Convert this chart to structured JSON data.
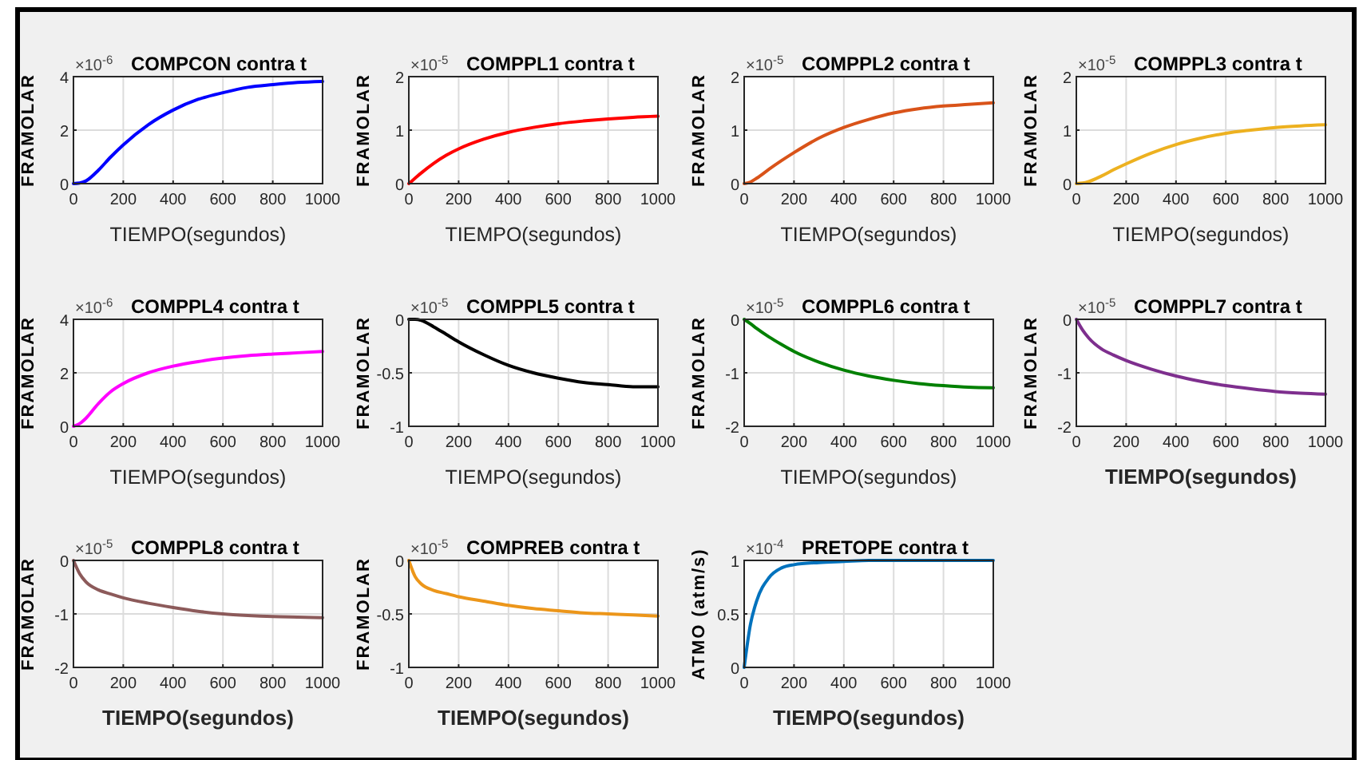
{
  "chart_data": [
    {
      "type": "line",
      "title": "COMPCON contra t",
      "annotations": [
        "×10$^{-6}$"
      ],
      "xlabel": "TIEMPO(segundos)",
      "ylabel": "FRAMOLAR",
      "xlim": [
        0,
        1000
      ],
      "xticks": [
        0,
        200,
        400,
        600,
        800,
        1000
      ],
      "ylim": [
        0,
        4
      ],
      "yticks": [
        0,
        2,
        4
      ],
      "grid": true,
      "x": [
        0,
        25,
        50,
        100,
        150,
        200,
        300,
        400,
        500,
        600,
        700,
        800,
        900,
        1000
      ],
      "series": [
        {
          "color": "#0000ff",
          "values": [
            0,
            0.02,
            0.1,
            0.5,
            1.0,
            1.45,
            2.2,
            2.75,
            3.15,
            3.4,
            3.6,
            3.7,
            3.78,
            3.82
          ]
        }
      ]
    },
    {
      "type": "line",
      "title": "COMPPL1 contra t",
      "annotations": [
        "×10$^{-5}$"
      ],
      "xlabel": "TIEMPO(segundos)",
      "ylabel": "FRAMOLAR",
      "xlim": [
        0,
        1000
      ],
      "xticks": [
        0,
        200,
        400,
        600,
        800,
        1000
      ],
      "ylim": [
        0,
        2
      ],
      "yticks": [
        0,
        1,
        2
      ],
      "grid": true,
      "x": [
        0,
        25,
        50,
        100,
        150,
        200,
        300,
        400,
        500,
        600,
        700,
        800,
        900,
        1000
      ],
      "series": [
        {
          "color": "#ff0000",
          "values": [
            0,
            0.1,
            0.2,
            0.38,
            0.53,
            0.65,
            0.83,
            0.96,
            1.05,
            1.12,
            1.17,
            1.21,
            1.24,
            1.26
          ]
        }
      ]
    },
    {
      "type": "line",
      "title": "COMPPL2 contra t",
      "annotations": [
        "×10$^{-5}$"
      ],
      "xlabel": "TIEMPO(segundos)",
      "ylabel": "FRAMOLAR",
      "xlim": [
        0,
        1000
      ],
      "xticks": [
        0,
        200,
        400,
        600,
        800,
        1000
      ],
      "ylim": [
        0,
        2
      ],
      "yticks": [
        0,
        1,
        2
      ],
      "grid": true,
      "x": [
        0,
        25,
        50,
        100,
        150,
        200,
        300,
        400,
        500,
        600,
        700,
        800,
        900,
        1000
      ],
      "series": [
        {
          "color": "#d95319",
          "values": [
            0,
            0.03,
            0.1,
            0.27,
            0.43,
            0.58,
            0.85,
            1.05,
            1.2,
            1.32,
            1.4,
            1.45,
            1.48,
            1.51
          ]
        }
      ]
    },
    {
      "type": "line",
      "title": "COMPPL3 contra t",
      "annotations": [
        "×10$^{-5}$"
      ],
      "xlabel": "TIEMPO(segundos)",
      "ylabel": "FRAMOLAR",
      "xlim": [
        0,
        1000
      ],
      "xticks": [
        0,
        200,
        400,
        600,
        800,
        1000
      ],
      "ylim": [
        0,
        2
      ],
      "yticks": [
        0,
        1,
        2
      ],
      "grid": true,
      "x": [
        0,
        25,
        50,
        100,
        150,
        200,
        300,
        400,
        500,
        600,
        700,
        800,
        900,
        1000
      ],
      "series": [
        {
          "color": "#edb120",
          "values": [
            0,
            0.01,
            0.04,
            0.14,
            0.26,
            0.37,
            0.57,
            0.73,
            0.85,
            0.94,
            1.0,
            1.05,
            1.08,
            1.1
          ]
        }
      ]
    },
    {
      "type": "line",
      "title": "COMPPL4 contra t",
      "annotations": [
        "×10$^{-6}$"
      ],
      "xlabel": "TIEMPO(segundos)",
      "ylabel": "FRAMOLAR",
      "xlim": [
        0,
        1000
      ],
      "xticks": [
        0,
        200,
        400,
        600,
        800,
        1000
      ],
      "ylim": [
        0,
        4
      ],
      "yticks": [
        0,
        2,
        4
      ],
      "grid": true,
      "x": [
        0,
        25,
        50,
        100,
        150,
        200,
        300,
        400,
        500,
        600,
        700,
        800,
        900,
        1000
      ],
      "series": [
        {
          "color": "#ff00ff",
          "values": [
            0,
            0.1,
            0.3,
            0.85,
            1.3,
            1.6,
            2.0,
            2.25,
            2.42,
            2.55,
            2.64,
            2.7,
            2.75,
            2.8
          ]
        }
      ]
    },
    {
      "type": "line",
      "title": "COMPPL5 contra t",
      "annotations": [
        "×10$^{-5}$"
      ],
      "xlabel": "TIEMPO(segundos)",
      "ylabel": "FRAMOLAR",
      "xlim": [
        0,
        1000
      ],
      "xticks": [
        0,
        200,
        400,
        600,
        800,
        1000
      ],
      "ylim": [
        -1,
        0
      ],
      "yticks": [
        -1,
        -0.5,
        0
      ],
      "grid": true,
      "x": [
        0,
        25,
        50,
        100,
        150,
        200,
        300,
        400,
        500,
        600,
        700,
        800,
        900,
        1000
      ],
      "series": [
        {
          "color": "#000000",
          "values": [
            0,
            0,
            -0.01,
            -0.07,
            -0.14,
            -0.21,
            -0.33,
            -0.43,
            -0.5,
            -0.55,
            -0.59,
            -0.61,
            -0.63,
            -0.63
          ]
        }
      ]
    },
    {
      "type": "line",
      "title": "COMPPL6 contra t",
      "annotations": [
        "×10$^{-5}$"
      ],
      "xlabel": "TIEMPO(segundos)",
      "ylabel": "FRAMOLAR",
      "xlim": [
        0,
        1000
      ],
      "xticks": [
        0,
        200,
        400,
        600,
        800,
        1000
      ],
      "ylim": [
        -2,
        0
      ],
      "yticks": [
        -2,
        -1,
        0
      ],
      "grid": true,
      "x": [
        0,
        25,
        50,
        100,
        150,
        200,
        300,
        400,
        500,
        600,
        700,
        800,
        900,
        1000
      ],
      "series": [
        {
          "color": "#008000",
          "values": [
            0,
            -0.08,
            -0.17,
            -0.33,
            -0.47,
            -0.6,
            -0.8,
            -0.95,
            -1.06,
            -1.14,
            -1.2,
            -1.24,
            -1.27,
            -1.28
          ]
        }
      ]
    },
    {
      "type": "line",
      "title": "COMPPL7 contra t",
      "annotations": [
        "×10$^{-5}$"
      ],
      "xlabel": "TIEMPO(segundos)",
      "ylabel": "FRAMOLAR",
      "xlim": [
        0,
        1000
      ],
      "xticks": [
        0,
        200,
        400,
        600,
        800,
        1000
      ],
      "ylim": [
        -2,
        0
      ],
      "yticks": [
        -2,
        -1,
        0
      ],
      "grid": true,
      "x": [
        0,
        25,
        50,
        100,
        150,
        200,
        300,
        400,
        500,
        600,
        700,
        800,
        900,
        1000
      ],
      "series": [
        {
          "color": "#7e2f8e",
          "values": [
            0,
            -0.2,
            -0.35,
            -0.55,
            -0.67,
            -0.77,
            -0.93,
            -1.06,
            -1.16,
            -1.24,
            -1.3,
            -1.35,
            -1.38,
            -1.4
          ]
        }
      ]
    },
    {
      "type": "line",
      "title": "COMPPL8 contra t",
      "annotations": [
        "×10$^{-5}$"
      ],
      "xlabel": "TIEMPO(segundos)",
      "ylabel": "FRAMOLAR",
      "xlim": [
        0,
        1000
      ],
      "xticks": [
        0,
        200,
        400,
        600,
        800,
        1000
      ],
      "ylim": [
        -2,
        0
      ],
      "yticks": [
        -2,
        -1,
        0
      ],
      "grid": true,
      "x": [
        0,
        25,
        50,
        100,
        150,
        200,
        300,
        400,
        500,
        600,
        700,
        800,
        900,
        1000
      ],
      "series": [
        {
          "color": "#8c5a5a",
          "values": [
            0,
            -0.25,
            -0.4,
            -0.55,
            -0.63,
            -0.7,
            -0.8,
            -0.88,
            -0.95,
            -1.0,
            -1.03,
            -1.05,
            -1.06,
            -1.07
          ]
        }
      ]
    },
    {
      "type": "line",
      "title": "COMPREB contra t",
      "annotations": [
        "×10$^{-5}$"
      ],
      "xlabel": "TIEMPO(segundos)",
      "ylabel": "FRAMOLAR",
      "xlim": [
        0,
        1000
      ],
      "xticks": [
        0,
        200,
        400,
        600,
        800,
        1000
      ],
      "ylim": [
        -1,
        0
      ],
      "yticks": [
        -1,
        -0.5,
        0
      ],
      "grid": true,
      "x": [
        0,
        25,
        50,
        100,
        150,
        200,
        300,
        400,
        500,
        600,
        700,
        800,
        900,
        1000
      ],
      "series": [
        {
          "color": "#ec961a",
          "values": [
            0,
            -0.15,
            -0.22,
            -0.28,
            -0.31,
            -0.34,
            -0.38,
            -0.42,
            -0.45,
            -0.47,
            -0.49,
            -0.5,
            -0.51,
            -0.52
          ]
        }
      ]
    },
    {
      "type": "line",
      "title": "PRETOPE contra t",
      "annotations": [
        "×10$^{-4}$"
      ],
      "xlabel": "TIEMPO(segundos)",
      "ylabel": "ATMO (atm/s)",
      "xlim": [
        0,
        1000
      ],
      "xticks": [
        0,
        200,
        400,
        600,
        800,
        1000
      ],
      "ylim": [
        0,
        1
      ],
      "yticks": [
        0,
        0.5,
        1
      ],
      "grid": true,
      "x": [
        0,
        25,
        50,
        100,
        150,
        200,
        300,
        400,
        500,
        600,
        700,
        800,
        900,
        1000
      ],
      "series": [
        {
          "color": "#0072bd",
          "values": [
            0,
            0.4,
            0.62,
            0.84,
            0.93,
            0.96,
            0.98,
            0.99,
            1,
            1,
            1,
            1,
            1,
            1
          ]
        }
      ]
    }
  ]
}
